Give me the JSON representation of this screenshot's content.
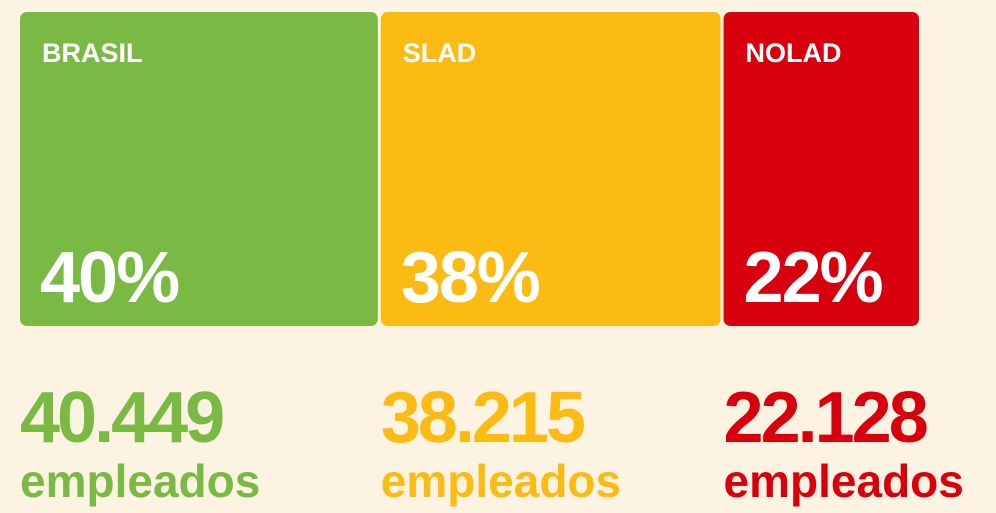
{
  "chart_data": {
    "type": "bar",
    "categories": [
      "BRASIL",
      "SLAD",
      "NOLAD"
    ],
    "values": [
      40,
      38,
      22
    ],
    "value_labels": [
      "40%",
      "38%",
      "22%"
    ],
    "employees": [
      40449,
      38215,
      22128
    ],
    "employee_labels": [
      "40.449",
      "38.215",
      "22.128"
    ],
    "employee_units": [
      "empleados",
      "empleados",
      "empleados"
    ],
    "colors": [
      "#7ab944",
      "#fbbb12",
      "#d9000d"
    ]
  }
}
